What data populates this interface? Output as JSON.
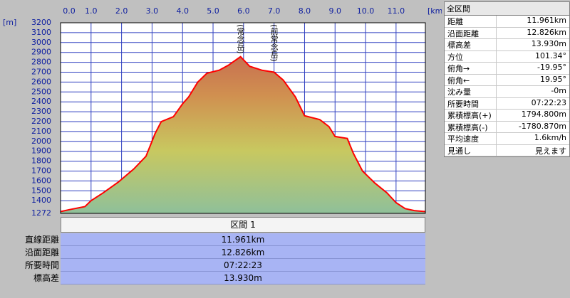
{
  "chart_data": {
    "type": "area",
    "x_unit": "[km]",
    "y_unit": "[m]",
    "x": [
      0,
      0.3,
      0.8,
      1.0,
      1.4,
      1.9,
      2.4,
      2.8,
      3.1,
      3.3,
      3.7,
      4.0,
      4.2,
      4.5,
      4.8,
      5.2,
      5.5,
      5.9,
      6.2,
      6.6,
      7.0,
      7.3,
      7.7,
      8.0,
      8.5,
      8.8,
      9.0,
      9.4,
      9.6,
      9.9,
      10.3,
      10.7,
      11.0,
      11.3,
      11.6,
      11.961
    ],
    "series": [
      {
        "color": "#ff0000",
        "values": [
          1290,
          1310,
          1340,
          1400,
          1480,
          1590,
          1720,
          1850,
          2080,
          2200,
          2250,
          2380,
          2450,
          2600,
          2690,
          2720,
          2770,
          2857,
          2760,
          2720,
          2700,
          2620,
          2450,
          2260,
          2220,
          2150,
          2050,
          2030,
          1880,
          1700,
          1580,
          1480,
          1380,
          1320,
          1300,
          1290
        ]
      }
    ],
    "xlim": [
      0,
      11.961
    ],
    "ylim": [
      1272,
      3200
    ],
    "xticks": [
      {
        "value": 0,
        "label": "0.0"
      },
      {
        "value": 1,
        "label": "1.0"
      },
      {
        "value": 2,
        "label": "2.0"
      },
      {
        "value": 3,
        "label": "3.0"
      },
      {
        "value": 4,
        "label": "4.0"
      },
      {
        "value": 5,
        "label": "5.0"
      },
      {
        "value": 6,
        "label": "6.0"
      },
      {
        "value": 7,
        "label": "7.0"
      },
      {
        "value": 8,
        "label": "8.0"
      },
      {
        "value": 9,
        "label": "9.0"
      },
      {
        "value": 10,
        "label": "10.0"
      },
      {
        "value": 11,
        "label": "11.0"
      }
    ],
    "yticks": [
      1272,
      1400,
      1500,
      1600,
      1700,
      1800,
      1900,
      2000,
      2100,
      2200,
      2300,
      2400,
      2500,
      2600,
      2700,
      2800,
      2900,
      3000,
      3100,
      3200
    ],
    "grid": true,
    "annotations": [
      {
        "text": "(常念岳)",
        "x": 5.9
      },
      {
        "text": "(前常念岳)",
        "x": 7.0
      }
    ]
  },
  "stats_panel": {
    "title": "全区間",
    "rows": [
      [
        "距離",
        "11.961km"
      ],
      [
        "沿面距離",
        "12.826km"
      ],
      [
        "標高差",
        "13.930m"
      ],
      [
        "方位",
        "101.34°"
      ],
      [
        "俯角→",
        "-19.95°"
      ],
      [
        "俯角←",
        "19.95°"
      ],
      [
        "沈み量",
        "-0m"
      ],
      [
        "所要時間",
        "07:22:23"
      ],
      [
        "累積標高(+)",
        "1794.800m"
      ],
      [
        "累積標高(-)",
        "-1780.870m"
      ],
      [
        "平均速度",
        "1.6km/h"
      ],
      [
        "見通し",
        "見えます"
      ]
    ]
  },
  "section_table": {
    "header": "区間 1",
    "rows": [
      [
        "直線距離",
        "11.961km"
      ],
      [
        "沿面距離",
        "12.826km"
      ],
      [
        "所要時間",
        "07:22:23"
      ],
      [
        "標高差",
        "13.930m"
      ]
    ]
  }
}
